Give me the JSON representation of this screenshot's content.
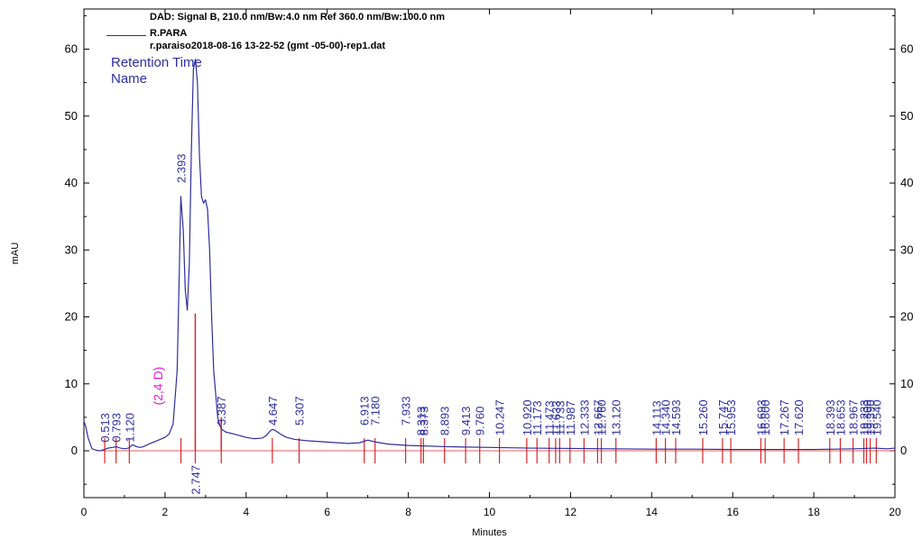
{
  "header": {
    "signal": "DAD: Signal B, 210.0 nm/Bw:4.0 nm Ref 360.0 nm/Bw:100.0 nm",
    "series": "R.PARA",
    "file": "r.paraiso2018-08-16 13-22-52 (gmt -05-00)-rep1.dat"
  },
  "legend_block": {
    "line1": "Retention Time",
    "line2": "Name"
  },
  "colors": {
    "trace": "#2e2e9c",
    "marker": "#d8262a",
    "annotation": "#e21ad5",
    "axis": "#000000"
  },
  "chart_data": {
    "type": "line",
    "xlabel": "Minutes",
    "ylabel": "mAU",
    "xlim": [
      0,
      20
    ],
    "ylim": [
      -7,
      66
    ],
    "xticks": [
      0,
      2,
      4,
      6,
      8,
      10,
      12,
      14,
      16,
      18,
      20
    ],
    "yticks": [
      0,
      10,
      20,
      30,
      40,
      50,
      60
    ],
    "series": [
      {
        "name": "R.PARA",
        "x": [
          0.0,
          0.05,
          0.1,
          0.2,
          0.3,
          0.4,
          0.5,
          0.6,
          0.7,
          0.8,
          0.9,
          1.0,
          1.1,
          1.2,
          1.3,
          1.4,
          1.5,
          1.6,
          1.8,
          2.0,
          2.1,
          2.2,
          2.3,
          2.35,
          2.39,
          2.45,
          2.5,
          2.55,
          2.6,
          2.65,
          2.7,
          2.75,
          2.8,
          2.85,
          2.9,
          2.95,
          3.0,
          3.05,
          3.1,
          3.15,
          3.2,
          3.3,
          3.35,
          3.4,
          3.5,
          3.7,
          4.0,
          4.2,
          4.4,
          4.5,
          4.6,
          4.65,
          4.7,
          4.8,
          4.9,
          5.0,
          5.2,
          5.5,
          6.0,
          6.5,
          6.8,
          6.9,
          7.0,
          7.2,
          7.5,
          8.0,
          9.0,
          10.0,
          11.0,
          12.0,
          13.0,
          14.0,
          15.0,
          16.0,
          17.0,
          18.0,
          19.0,
          19.5,
          19.8,
          20.0
        ],
        "y": [
          4.5,
          3.5,
          2.0,
          0.3,
          0.1,
          0.0,
          0.2,
          0.4,
          0.5,
          0.6,
          0.4,
          0.3,
          0.4,
          0.9,
          0.6,
          0.5,
          0.7,
          1.0,
          1.5,
          2.0,
          2.5,
          4.0,
          12.0,
          26.0,
          38.0,
          33.0,
          24.0,
          21.0,
          28.0,
          45.0,
          57.0,
          58.5,
          55.0,
          44.0,
          38.0,
          37.0,
          37.5,
          36.0,
          30.0,
          20.0,
          12.0,
          5.0,
          3.8,
          3.2,
          2.8,
          2.5,
          2.0,
          1.8,
          1.9,
          2.3,
          3.0,
          3.2,
          3.1,
          2.7,
          2.3,
          2.0,
          1.7,
          1.5,
          1.3,
          1.1,
          1.2,
          1.4,
          1.6,
          1.3,
          1.0,
          0.8,
          0.6,
          0.5,
          0.4,
          0.35,
          0.3,
          0.25,
          0.25,
          0.2,
          0.2,
          0.2,
          0.3,
          0.4,
          0.3,
          0.4
        ]
      }
    ],
    "peaks": [
      {
        "rt": "0.513",
        "x": 0.513
      },
      {
        "rt": "0.793",
        "x": 0.793
      },
      {
        "rt": "1.120",
        "x": 1.12
      },
      {
        "rt": "2.393",
        "x": 2.393
      },
      {
        "rt": "2.747",
        "x": 2.747
      },
      {
        "rt": "3.387",
        "x": 3.387
      },
      {
        "rt": "4.647",
        "x": 4.647
      },
      {
        "rt": "5.307",
        "x": 5.307
      },
      {
        "rt": "6.913",
        "x": 6.913
      },
      {
        "rt": "7.180",
        "x": 7.18
      },
      {
        "rt": "7.933",
        "x": 7.933
      },
      {
        "rt": "8.313",
        "x": 8.313
      },
      {
        "rt": "8.373",
        "x": 8.373
      },
      {
        "rt": "8.893",
        "x": 8.893
      },
      {
        "rt": "9.413",
        "x": 9.413
      },
      {
        "rt": "9.760",
        "x": 9.76
      },
      {
        "rt": "10.247",
        "x": 10.247
      },
      {
        "rt": "10.920",
        "x": 10.92
      },
      {
        "rt": "11.173",
        "x": 11.173
      },
      {
        "rt": "11.473",
        "x": 11.473
      },
      {
        "rt": "11.633",
        "x": 11.633
      },
      {
        "rt": "11.733",
        "x": 11.733
      },
      {
        "rt": "11.987",
        "x": 11.987
      },
      {
        "rt": "12.333",
        "x": 12.333
      },
      {
        "rt": "12.667",
        "x": 12.667
      },
      {
        "rt": "12.760",
        "x": 12.76
      },
      {
        "rt": "13.120",
        "x": 13.12
      },
      {
        "rt": "14.113",
        "x": 14.113
      },
      {
        "rt": "14.340",
        "x": 14.34
      },
      {
        "rt": "14.593",
        "x": 14.593
      },
      {
        "rt": "15.260",
        "x": 15.26
      },
      {
        "rt": "15.747",
        "x": 15.747
      },
      {
        "rt": "15.953",
        "x": 15.953
      },
      {
        "rt": "16.693",
        "x": 16.693
      },
      {
        "rt": "16.800",
        "x": 16.8
      },
      {
        "rt": "17.267",
        "x": 17.267
      },
      {
        "rt": "17.620",
        "x": 17.62
      },
      {
        "rt": "18.393",
        "x": 18.393
      },
      {
        "rt": "18.653",
        "x": 18.653
      },
      {
        "rt": "18.967",
        "x": 18.967
      },
      {
        "rt": "19.233",
        "x": 19.233
      },
      {
        "rt": "19.300",
        "x": 19.3
      },
      {
        "rt": "19.390",
        "x": 19.39
      },
      {
        "rt": "19.540",
        "x": 19.54
      }
    ],
    "peak_name_annotation": {
      "text": "(2,4 D)",
      "x": 2.0
    }
  }
}
